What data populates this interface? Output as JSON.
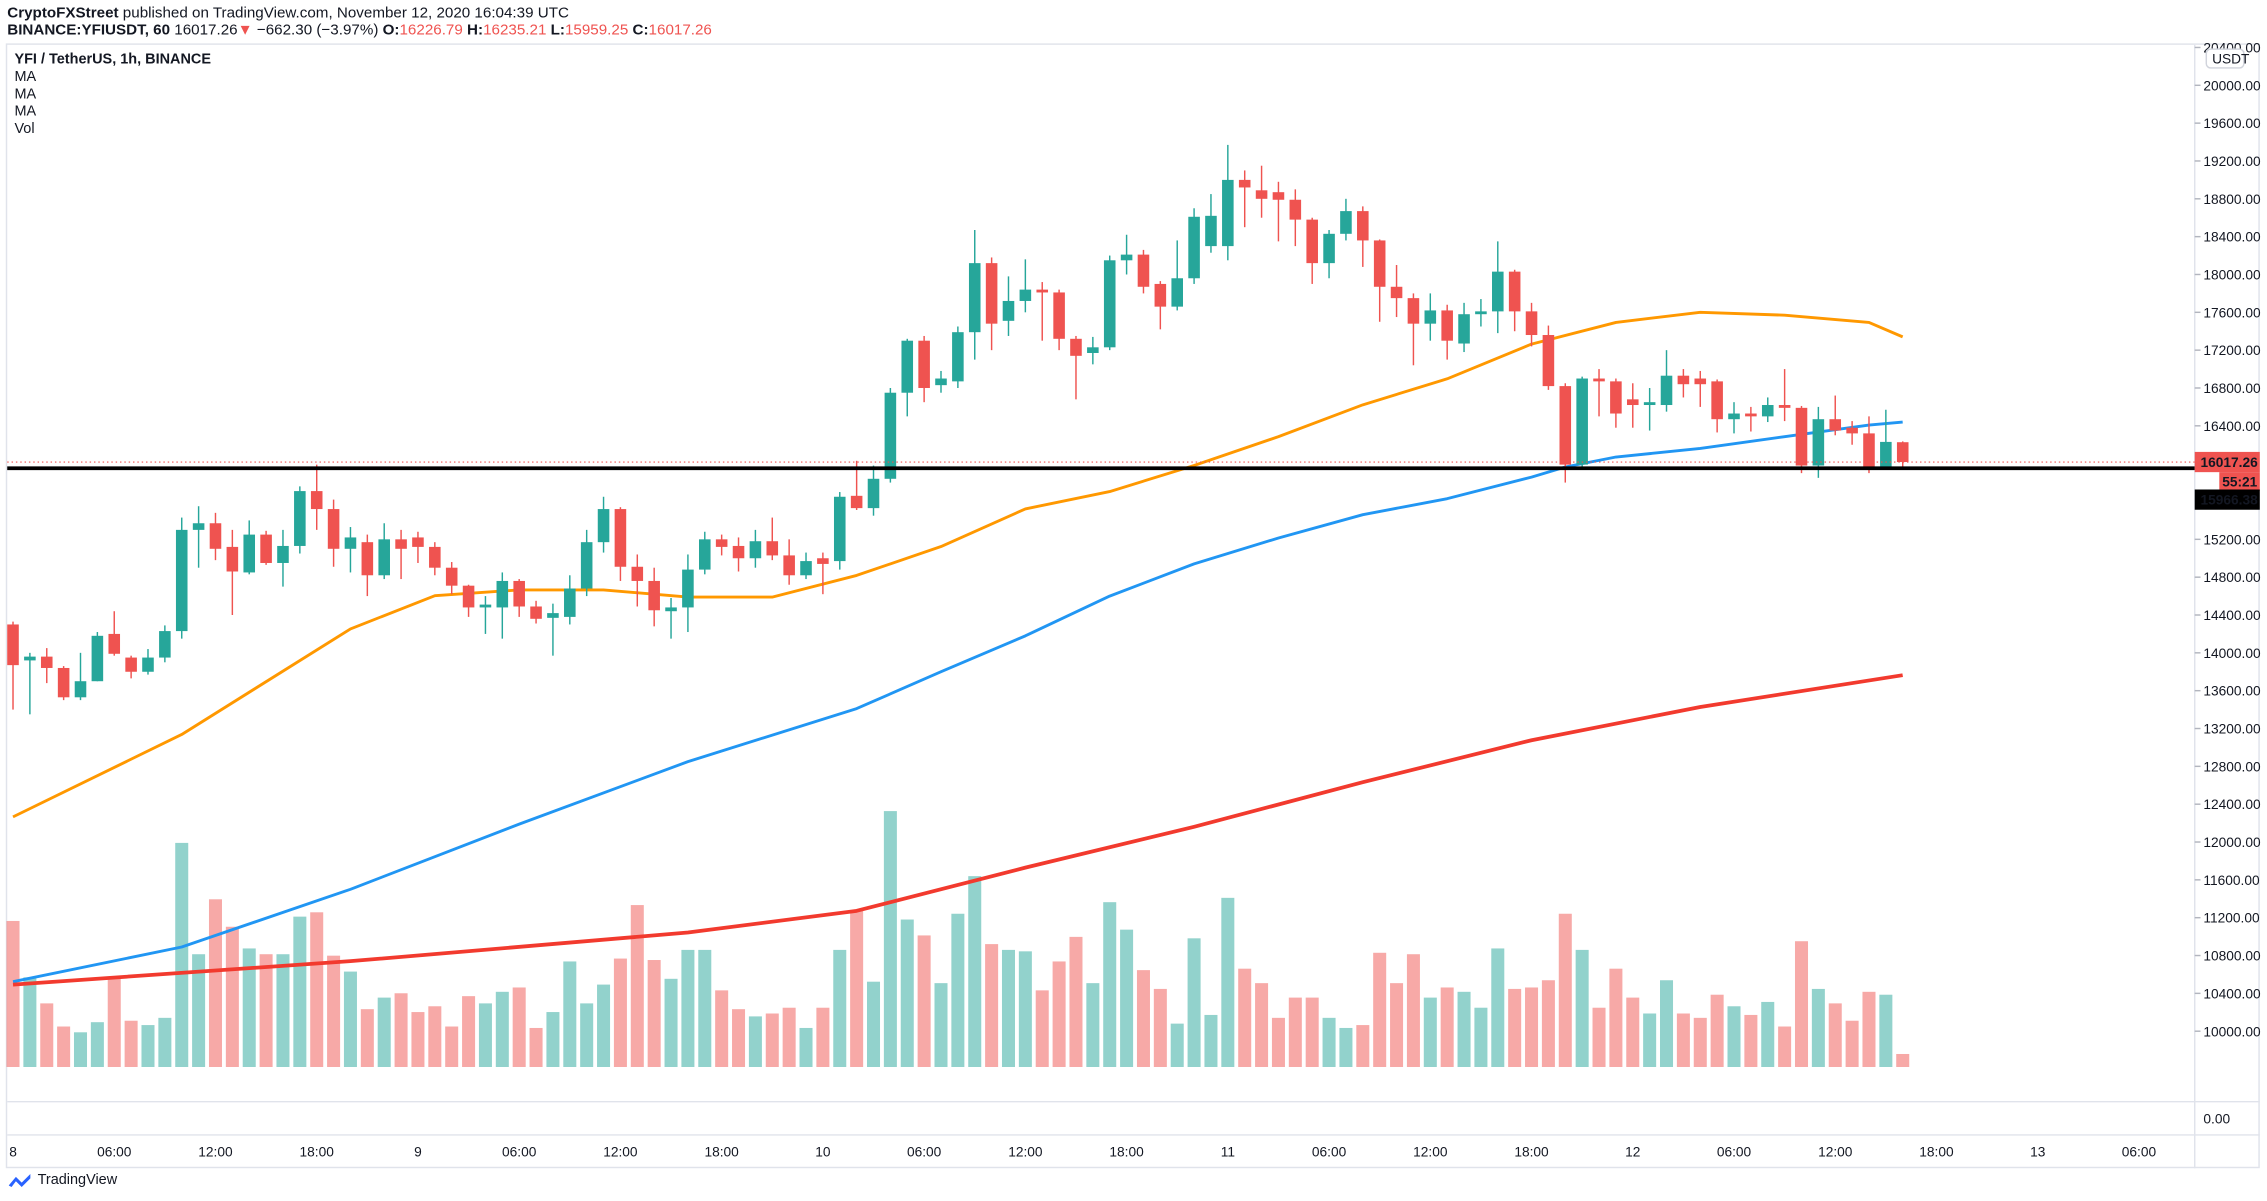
{
  "header": {
    "author": "CryptoFXStreet",
    "published": "published on TradingView.com, November 12, 2020 16:04:39 UTC",
    "symbol": "BINANCE:YFIUSDT, 60",
    "last": "16017.26",
    "change_arrow": "▼",
    "change": "−662.30 (−3.97%)",
    "o_label": "O:",
    "o": "16226.79",
    "h_label": "H:",
    "h": "16235.21",
    "l_label": "L:",
    "l": "15959.25",
    "c_label": "C:",
    "c": "16017.26"
  },
  "legend": {
    "title": "YFI / TetherUS, 1h, BINANCE",
    "items": [
      "MA",
      "MA",
      "MA",
      "Vol"
    ]
  },
  "footer": {
    "brand": "TradingView"
  },
  "colors": {
    "up": "#26a69a",
    "down": "#ef5350",
    "ma_orange": "#ff9800",
    "ma_blue": "#2196f3",
    "ma_red": "#f23a2e",
    "level": "#000000"
  },
  "chart_data": {
    "type": "candlestick",
    "interval": "1h",
    "currency_label": "USDT",
    "ylim": [
      9600,
      20500
    ],
    "price_ticks": [
      "20400.00",
      "20000.00",
      "19600.00",
      "19200.00",
      "18800.00",
      "18400.00",
      "18000.00",
      "17600.00",
      "17200.00",
      "16800.00",
      "16400.00",
      "15200.00",
      "14800.00",
      "14400.00",
      "14000.00",
      "13600.00",
      "13200.00",
      "12800.00",
      "12400.00",
      "12000.00",
      "11600.00",
      "11200.00",
      "10800.00",
      "10400.00",
      "10000.00"
    ],
    "volume_pane_tick": "0.00",
    "time_ticks": [
      {
        "hour": 0,
        "label": "8"
      },
      {
        "hour": 6,
        "label": "06:00"
      },
      {
        "hour": 12,
        "label": "12:00"
      },
      {
        "hour": 18,
        "label": "18:00"
      },
      {
        "hour": 24,
        "label": "9"
      },
      {
        "hour": 30,
        "label": "06:00"
      },
      {
        "hour": 36,
        "label": "12:00"
      },
      {
        "hour": 42,
        "label": "18:00"
      },
      {
        "hour": 48,
        "label": "10"
      },
      {
        "hour": 54,
        "label": "06:00"
      },
      {
        "hour": 60,
        "label": "12:00"
      },
      {
        "hour": 66,
        "label": "18:00"
      },
      {
        "hour": 72,
        "label": "11"
      },
      {
        "hour": 78,
        "label": "06:00"
      },
      {
        "hour": 84,
        "label": "12:00"
      },
      {
        "hour": 90,
        "label": "18:00"
      },
      {
        "hour": 96,
        "label": "12"
      },
      {
        "hour": 102,
        "label": "06:00"
      },
      {
        "hour": 108,
        "label": "12:00"
      },
      {
        "hour": 114,
        "label": "18:00"
      },
      {
        "hour": 120,
        "label": "13"
      },
      {
        "hour": 126,
        "label": "06:00"
      }
    ],
    "ohlc": [
      [
        14300,
        14330,
        13400,
        13870
      ],
      [
        13920,
        14000,
        13350,
        13960
      ],
      [
        13960,
        14050,
        13680,
        13840
      ],
      [
        13840,
        13860,
        13500,
        13530
      ],
      [
        13530,
        14000,
        13500,
        13700
      ],
      [
        13700,
        14220,
        13700,
        14180
      ],
      [
        14200,
        14440,
        13970,
        13990
      ],
      [
        13950,
        13970,
        13730,
        13800
      ],
      [
        13800,
        14040,
        13770,
        13950
      ],
      [
        13950,
        14290,
        13900,
        14230
      ],
      [
        14230,
        15430,
        14150,
        15300
      ],
      [
        15300,
        15550,
        14900,
        15370
      ],
      [
        15370,
        15480,
        14980,
        15100
      ],
      [
        15120,
        15300,
        14400,
        14860
      ],
      [
        14850,
        15400,
        14830,
        15250
      ],
      [
        15250,
        15290,
        14930,
        14950
      ],
      [
        14950,
        15300,
        14700,
        15130
      ],
      [
        15130,
        15760,
        15050,
        15710
      ],
      [
        15710,
        15990,
        15300,
        15520
      ],
      [
        15520,
        15620,
        14910,
        15100
      ],
      [
        15100,
        15330,
        14850,
        15220
      ],
      [
        15170,
        15250,
        14600,
        14820
      ],
      [
        14820,
        15370,
        14780,
        15200
      ],
      [
        15200,
        15300,
        14780,
        15100
      ],
      [
        15220,
        15280,
        14950,
        15120
      ],
      [
        15120,
        15170,
        14820,
        14900
      ],
      [
        14900,
        14960,
        14620,
        14710
      ],
      [
        14710,
        14720,
        14380,
        14480
      ],
      [
        14480,
        14600,
        14200,
        14510
      ],
      [
        14480,
        14850,
        14150,
        14760
      ],
      [
        14760,
        14780,
        14380,
        14490
      ],
      [
        14490,
        14550,
        14310,
        14360
      ],
      [
        14370,
        14520,
        13970,
        14420
      ],
      [
        14380,
        14820,
        14300,
        14680
      ],
      [
        14680,
        15300,
        14600,
        15170
      ],
      [
        15170,
        15650,
        15060,
        15520
      ],
      [
        15520,
        15540,
        14760,
        14910
      ],
      [
        14910,
        15040,
        14490,
        14760
      ],
      [
        14760,
        14900,
        14280,
        14450
      ],
      [
        14440,
        14580,
        14150,
        14480
      ],
      [
        14480,
        15040,
        14220,
        14880
      ],
      [
        14880,
        15280,
        14830,
        15200
      ],
      [
        15200,
        15250,
        15030,
        15120
      ],
      [
        15130,
        15220,
        14860,
        15000
      ],
      [
        15000,
        15300,
        14900,
        15180
      ],
      [
        15180,
        15430,
        14980,
        15030
      ],
      [
        15030,
        15200,
        14720,
        14820
      ],
      [
        14820,
        15060,
        14780,
        14970
      ],
      [
        15000,
        15060,
        14620,
        14940
      ],
      [
        14970,
        15700,
        14880,
        15650
      ],
      [
        15660,
        16030,
        15510,
        15530
      ],
      [
        15530,
        15980,
        15450,
        15840
      ],
      [
        15840,
        16800,
        15800,
        16750
      ],
      [
        16750,
        17320,
        16500,
        17300
      ],
      [
        17300,
        17350,
        16650,
        16800
      ],
      [
        16830,
        16980,
        16750,
        16900
      ],
      [
        16870,
        17450,
        16800,
        17390
      ],
      [
        17390,
        18470,
        17100,
        18120
      ],
      [
        18120,
        18180,
        17200,
        17480
      ],
      [
        17510,
        17980,
        17350,
        17720
      ],
      [
        17720,
        18160,
        17600,
        17840
      ],
      [
        17840,
        17920,
        17300,
        17810
      ],
      [
        17810,
        17840,
        17200,
        17320
      ],
      [
        17320,
        17350,
        16680,
        17140
      ],
      [
        17170,
        17340,
        17050,
        17230
      ],
      [
        17230,
        18200,
        17200,
        18150
      ],
      [
        18150,
        18420,
        18000,
        18210
      ],
      [
        18210,
        18260,
        17800,
        17870
      ],
      [
        17900,
        17930,
        17420,
        17660
      ],
      [
        17660,
        18360,
        17620,
        17960
      ],
      [
        17960,
        18700,
        17900,
        18610
      ],
      [
        18300,
        18850,
        18230,
        18620
      ],
      [
        18300,
        19370,
        18150,
        19000
      ],
      [
        19000,
        19100,
        18500,
        18920
      ],
      [
        18890,
        19150,
        18600,
        18800
      ],
      [
        18870,
        18980,
        18350,
        18790
      ],
      [
        18790,
        18900,
        18300,
        18580
      ],
      [
        18580,
        18600,
        17900,
        18120
      ],
      [
        18120,
        18470,
        17960,
        18430
      ],
      [
        18430,
        18800,
        18360,
        18670
      ],
      [
        18670,
        18720,
        18080,
        18360
      ],
      [
        18360,
        18370,
        17500,
        17870
      ],
      [
        17870,
        18100,
        17550,
        17750
      ],
      [
        17750,
        17800,
        17040,
        17480
      ],
      [
        17480,
        17800,
        17300,
        17620
      ],
      [
        17620,
        17680,
        17100,
        17300
      ],
      [
        17270,
        17700,
        17180,
        17580
      ],
      [
        17580,
        17740,
        17450,
        17610
      ],
      [
        17610,
        18350,
        17380,
        18030
      ],
      [
        18030,
        18050,
        17400,
        17610
      ],
      [
        17610,
        17700,
        17240,
        17360
      ],
      [
        17360,
        17460,
        16780,
        16820
      ],
      [
        16820,
        16850,
        15800,
        15990
      ],
      [
        15990,
        16920,
        15960,
        16900
      ],
      [
        16900,
        17000,
        16500,
        16870
      ],
      [
        16870,
        16900,
        16380,
        16530
      ],
      [
        16680,
        16850,
        16380,
        16620
      ],
      [
        16620,
        16800,
        16350,
        16650
      ],
      [
        16620,
        17200,
        16550,
        16930
      ],
      [
        16930,
        17000,
        16700,
        16840
      ],
      [
        16900,
        16980,
        16600,
        16840
      ],
      [
        16870,
        16890,
        16330,
        16470
      ],
      [
        16470,
        16650,
        16320,
        16530
      ],
      [
        16530,
        16600,
        16340,
        16500
      ],
      [
        16500,
        16700,
        16440,
        16620
      ],
      [
        16620,
        17000,
        16450,
        16590
      ],
      [
        16590,
        16610,
        15900,
        15980
      ],
      [
        15980,
        16600,
        15850,
        16470
      ],
      [
        16470,
        16720,
        16300,
        16350
      ],
      [
        16380,
        16450,
        16200,
        16320
      ],
      [
        16320,
        16500,
        15900,
        15950
      ],
      [
        15950,
        16570,
        15960,
        16230
      ],
      [
        16226.79,
        16235.21,
        15959.25,
        16017.26
      ]
    ],
    "volume_relative": [
      101,
      62,
      44,
      28,
      24,
      31,
      61,
      32,
      29,
      34,
      155,
      78,
      116,
      97,
      82,
      78,
      78,
      104,
      107,
      77,
      66,
      40,
      48,
      51,
      38,
      42,
      28,
      49,
      44,
      52,
      55,
      27,
      38,
      73,
      44,
      57,
      75,
      112,
      74,
      61,
      81,
      81,
      53,
      40,
      35,
      37,
      41,
      27,
      41,
      81,
      108,
      59,
      177,
      102,
      91,
      58,
      106,
      132,
      85,
      81,
      80,
      53,
      73,
      90,
      58,
      114,
      95,
      67,
      54,
      30,
      89,
      36,
      117,
      68,
      58,
      34,
      48,
      48,
      34,
      27,
      29,
      79,
      58,
      78,
      48,
      55,
      52,
      41,
      82,
      54,
      55,
      60,
      106,
      81,
      41,
      68,
      48,
      37,
      60,
      37,
      34,
      50,
      42,
      36,
      45,
      28,
      87,
      54,
      44,
      32,
      52,
      50,
      9
    ],
    "ma_orange": [
      [
        0,
        12266
      ],
      [
        10,
        13137
      ],
      [
        20,
        14253
      ],
      [
        25,
        14604
      ],
      [
        30,
        14665
      ],
      [
        35,
        14665
      ],
      [
        40,
        14589
      ],
      [
        45,
        14589
      ],
      [
        50,
        14818
      ],
      [
        55,
        15124
      ],
      [
        60,
        15522
      ],
      [
        65,
        15705
      ],
      [
        70,
        15980
      ],
      [
        75,
        16286
      ],
      [
        80,
        16622
      ],
      [
        85,
        16897
      ],
      [
        90,
        17264
      ],
      [
        95,
        17493
      ],
      [
        100,
        17600
      ],
      [
        105,
        17570
      ],
      [
        110,
        17493
      ],
      [
        112,
        17340
      ]
    ],
    "ma_blue": [
      [
        0,
        10523
      ],
      [
        10,
        10890
      ],
      [
        20,
        11500
      ],
      [
        30,
        12190
      ],
      [
        40,
        12850
      ],
      [
        50,
        13410
      ],
      [
        55,
        13800
      ],
      [
        60,
        14180
      ],
      [
        65,
        14600
      ],
      [
        70,
        14940
      ],
      [
        75,
        15215
      ],
      [
        80,
        15460
      ],
      [
        85,
        15630
      ],
      [
        90,
        15858
      ],
      [
        92,
        15965
      ],
      [
        95,
        16070
      ],
      [
        100,
        16160
      ],
      [
        105,
        16286
      ],
      [
        110,
        16408
      ],
      [
        112,
        16440
      ]
    ],
    "ma_red": [
      [
        0,
        10493
      ],
      [
        20,
        10740
      ],
      [
        40,
        11043
      ],
      [
        50,
        11273
      ],
      [
        60,
        11730
      ],
      [
        70,
        12160
      ],
      [
        80,
        12633
      ],
      [
        90,
        13076
      ],
      [
        100,
        13427
      ],
      [
        112,
        13764
      ]
    ],
    "horizontal_level": 15966.38,
    "price_tags": {
      "last": "16017.26",
      "countdown": "55:21",
      "level": "15966.38"
    }
  }
}
